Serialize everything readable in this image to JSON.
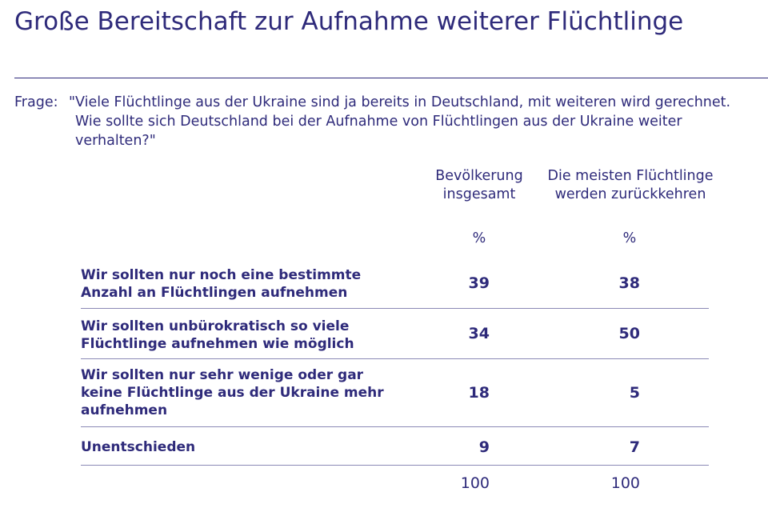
{
  "title": "Große Bereitschaft zur Aufnahme weiterer Flüchtlinge",
  "question": {
    "label": "Frage:",
    "text": "\"Viele Flüchtlinge aus der Ukraine sind ja bereits in Deutschland, mit weiteren wird gerechnet. Wie sollte sich Deutschland bei der Aufnahme von Flüchtlingen aus der Ukraine weiter verhalten?\""
  },
  "columns": [
    {
      "header": "Bevölkerung insgesamt",
      "unit": "%"
    },
    {
      "header": "Die meisten Flüchtlinge werden zurückkehren",
      "unit": "%"
    }
  ],
  "chart_data": {
    "type": "table",
    "title": "Große Bereitschaft zur Aufnahme weiterer Flüchtlinge",
    "categories": [
      "Wir sollten nur noch eine bestimmte Anzahl an Flüchtlingen aufnehmen",
      "Wir sollten unbürokratisch so viele Flüchtlinge aufnehmen wie möglich",
      "Wir sollten nur sehr wenige oder gar keine Flüchtlinge aus der Ukraine mehr aufnehmen",
      "Unentschieden"
    ],
    "series": [
      {
        "name": "Bevölkerung insgesamt",
        "values": [
          39,
          34,
          18,
          9
        ],
        "total": 100
      },
      {
        "name": "Die meisten Flüchtlinge werden zurückkehren",
        "values": [
          38,
          50,
          5,
          7
        ],
        "total": 100
      }
    ],
    "unit": "%"
  },
  "colors": {
    "text": "#2e2a7a",
    "separator": "#8b88b6"
  }
}
